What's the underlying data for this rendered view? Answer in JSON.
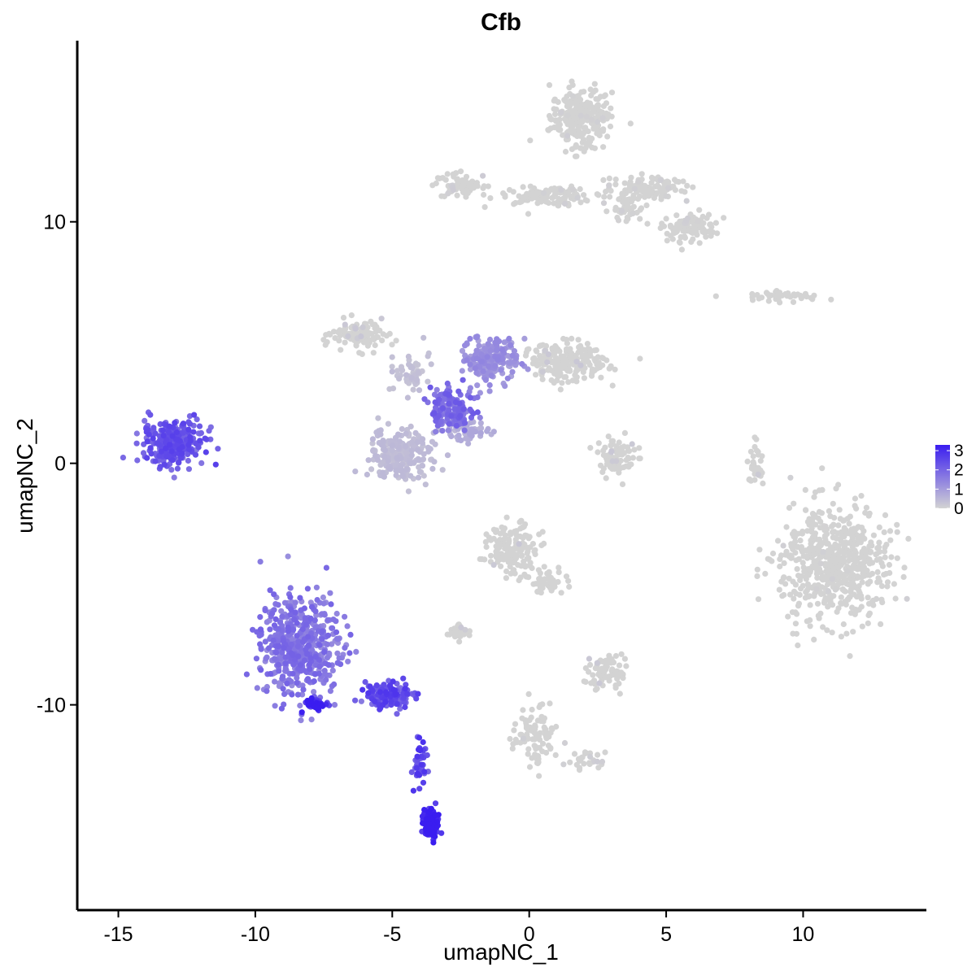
{
  "chart_data": {
    "type": "scatter",
    "title": "Cfb",
    "xlabel": "umapNC_1",
    "ylabel": "umapNC_2",
    "xlim": [
      -16.5,
      14.5
    ],
    "ylim": [
      -18.5,
      17.5
    ],
    "xticks": [
      -15,
      -10,
      -5,
      0,
      5,
      10
    ],
    "yticks": [
      -10,
      0,
      10
    ],
    "grid": false,
    "color_scale": {
      "low_color": "#d3d3d3",
      "high_color": "#3a1df0",
      "min": 0,
      "max": 3.3,
      "ticks": [
        0,
        1,
        2,
        3
      ],
      "legend_position": "right"
    },
    "clusters": [
      {
        "cx": 1.9,
        "cy": 14.3,
        "sx": 1.0,
        "sy": 1.1,
        "n": 260,
        "expr": 0.02
      },
      {
        "cx": 0.5,
        "cy": 11.1,
        "sx": 1.7,
        "sy": 0.35,
        "n": 120,
        "expr": 0.02
      },
      {
        "cx": -2.5,
        "cy": 11.5,
        "sx": 0.9,
        "sy": 0.5,
        "n": 70,
        "expr": 0.03
      },
      {
        "cx": 4.3,
        "cy": 11.4,
        "sx": 1.3,
        "sy": 0.45,
        "n": 110,
        "expr": 0.02
      },
      {
        "cx": 5.8,
        "cy": 9.8,
        "sx": 0.9,
        "sy": 0.55,
        "n": 110,
        "expr": 0.02
      },
      {
        "cx": 3.6,
        "cy": 10.5,
        "sx": 0.5,
        "sy": 0.5,
        "n": 40,
        "expr": 0.02
      },
      {
        "cx": 9.3,
        "cy": 6.9,
        "sx": 1.2,
        "sy": 0.2,
        "n": 40,
        "expr": 0.03
      },
      {
        "cx": -6.2,
        "cy": 5.3,
        "sx": 0.9,
        "sy": 0.55,
        "n": 110,
        "expr": 0.06
      },
      {
        "cx": -4.3,
        "cy": 3.7,
        "sx": 0.6,
        "sy": 0.8,
        "n": 50,
        "expr": 0.1
      },
      {
        "cx": -4.7,
        "cy": 0.3,
        "sx": 1.0,
        "sy": 1.0,
        "n": 220,
        "expr": 0.12
      },
      {
        "cx": -2.8,
        "cy": 2.2,
        "sx": 0.7,
        "sy": 0.8,
        "n": 160,
        "expr": 0.55
      },
      {
        "cx": -1.4,
        "cy": 4.3,
        "sx": 0.9,
        "sy": 0.9,
        "n": 190,
        "expr": 0.35
      },
      {
        "cx": 1.3,
        "cy": 4.2,
        "sx": 1.4,
        "sy": 0.7,
        "n": 220,
        "expr": 0.06
      },
      {
        "cx": -2.3,
        "cy": 1.3,
        "sx": 0.9,
        "sy": 0.4,
        "n": 50,
        "expr": 0.2
      },
      {
        "cx": 3.2,
        "cy": 0.3,
        "sx": 0.6,
        "sy": 0.7,
        "n": 90,
        "expr": 0.06
      },
      {
        "cx": 8.3,
        "cy": -0.2,
        "sx": 0.25,
        "sy": 0.9,
        "n": 35,
        "expr": 0.05
      },
      {
        "cx": 11.1,
        "cy": -4.2,
        "sx": 1.8,
        "sy": 2.2,
        "n": 600,
        "expr": 0.01
      },
      {
        "cx": -0.6,
        "cy": -3.6,
        "sx": 0.8,
        "sy": 1.0,
        "n": 150,
        "expr": 0.06
      },
      {
        "cx": 0.8,
        "cy": -4.9,
        "sx": 0.6,
        "sy": 0.5,
        "n": 50,
        "expr": 0.05
      },
      {
        "cx": -2.6,
        "cy": -6.9,
        "sx": 0.4,
        "sy": 0.3,
        "n": 30,
        "expr": 0.05
      },
      {
        "cx": 2.9,
        "cy": -8.7,
        "sx": 0.7,
        "sy": 0.7,
        "n": 70,
        "expr": 0.06
      },
      {
        "cx": 0.2,
        "cy": -11.4,
        "sx": 0.7,
        "sy": 1.2,
        "n": 100,
        "expr": 0.03
      },
      {
        "cx": 2.0,
        "cy": -12.3,
        "sx": 0.7,
        "sy": 0.3,
        "n": 30,
        "expr": 0.03
      },
      {
        "cx": -13.0,
        "cy": 0.9,
        "sx": 1.0,
        "sy": 0.8,
        "n": 330,
        "expr": 0.65
      },
      {
        "cx": -8.4,
        "cy": -7.6,
        "sx": 1.3,
        "sy": 1.8,
        "n": 500,
        "expr": 0.5
      },
      {
        "cx": -5.1,
        "cy": -9.6,
        "sx": 0.8,
        "sy": 0.45,
        "n": 160,
        "expr": 0.7
      },
      {
        "cx": -7.8,
        "cy": -10.0,
        "sx": 0.4,
        "sy": 0.2,
        "n": 50,
        "expr": 0.95
      },
      {
        "cx": -4.0,
        "cy": -12.4,
        "sx": 0.25,
        "sy": 1.0,
        "n": 40,
        "expr": 0.75
      },
      {
        "cx": -3.6,
        "cy": -14.9,
        "sx": 0.25,
        "sy": 0.55,
        "n": 120,
        "expr": 1.0
      }
    ]
  }
}
